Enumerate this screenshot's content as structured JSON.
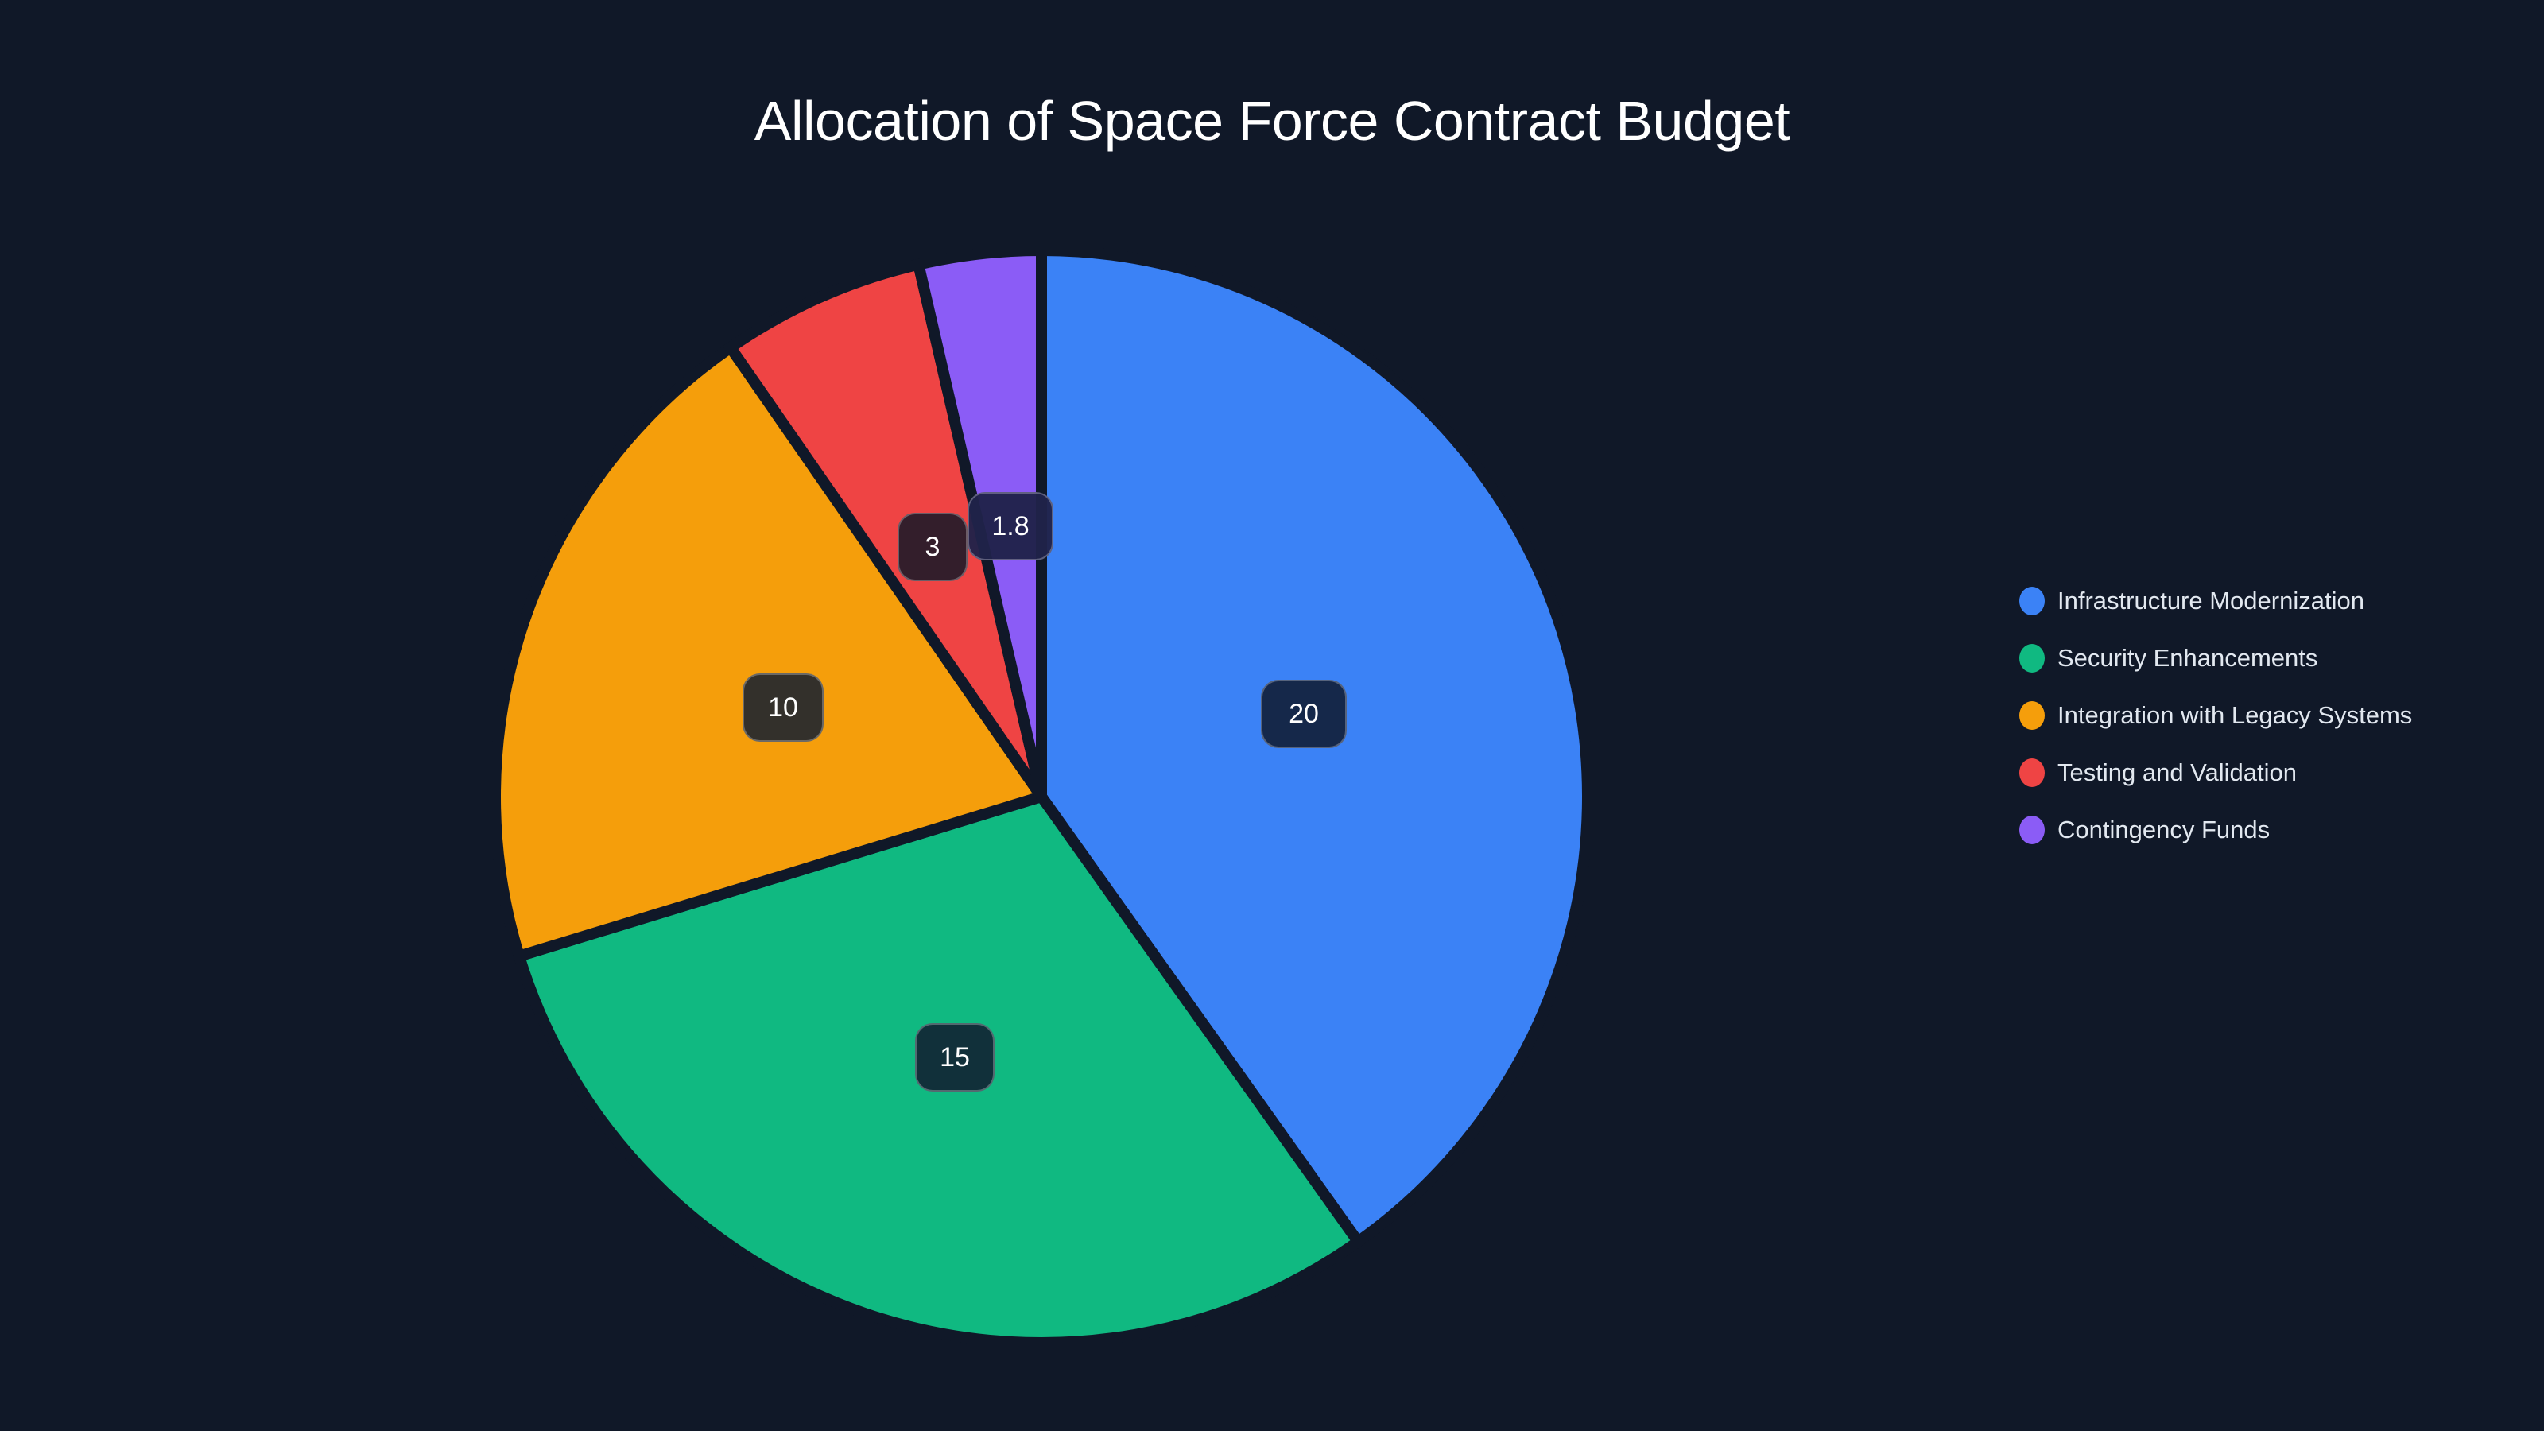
{
  "chart": {
    "title": "Allocation of Space Force Contract Budget",
    "labels": {
      "infra": "20",
      "security": "15",
      "integration": "10",
      "testing": "3",
      "contingency": "1.8"
    },
    "legend": [
      {
        "label": "Infrastructure Modernization",
        "color": "#3b82f6"
      },
      {
        "label": "Security Enhancements",
        "color": "#10b981"
      },
      {
        "label": "Integration with Legacy Systems",
        "color": "#f59e0b"
      },
      {
        "label": "Testing and Validation",
        "color": "#ef4444"
      },
      {
        "label": "Contingency Funds",
        "color": "#8b5cf6"
      }
    ]
  },
  "chart_data": {
    "type": "pie",
    "title": "Allocation of Space Force Contract Budget",
    "categories": [
      "Infrastructure Modernization",
      "Security Enhancements",
      "Integration with Legacy Systems",
      "Testing and Validation",
      "Contingency Funds"
    ],
    "values": [
      20,
      15,
      10,
      3,
      1.8
    ],
    "colors": [
      "#3b82f6",
      "#10b981",
      "#f59e0b",
      "#ef4444",
      "#8b5cf6"
    ],
    "data_labels": [
      "20",
      "15",
      "10",
      "3",
      "1.8"
    ],
    "start_angle": "top (12 o'clock)",
    "direction": "clockwise",
    "legend_position": "right",
    "xlabel": "",
    "ylabel": ""
  }
}
